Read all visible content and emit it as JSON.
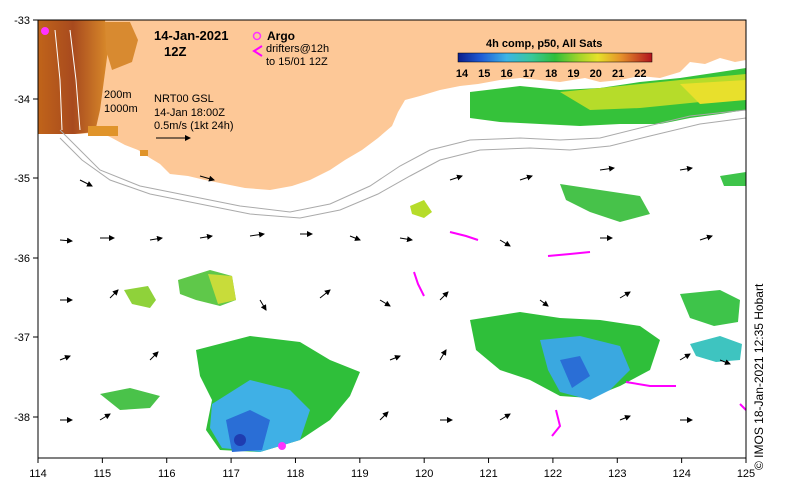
{
  "map": {
    "date": "14-Jan-2021",
    "time": "12Z",
    "legend_argo": "Argo",
    "legend_drifters_line1": "drifters@12h",
    "legend_drifters_line2": "to 15/01 12Z",
    "contour_200": "200m",
    "contour_1000": "1000m",
    "model": "NRT00 GSL",
    "model_time": "14-Jan 18:00Z",
    "scale_label": "0.5m/s (1kt 24h)",
    "colorbar_title": "4h comp, p50, All Sats",
    "colorbar_ticks": [
      "14",
      "15",
      "16",
      "17",
      "18",
      "19",
      "20",
      "21",
      "22"
    ],
    "credit": "© IMOS 18-Jan-2021 12:35 Hobart",
    "x_ticks": [
      "114",
      "115",
      "116",
      "117",
      "118",
      "119",
      "120",
      "121",
      "122",
      "123",
      "124",
      "125"
    ],
    "y_ticks": [
      "-33",
      "-34",
      "-35",
      "-36",
      "-37",
      "-38"
    ],
    "colors": {
      "land": "#fdc897",
      "argo": "#ff33ff",
      "drifter": "#ff00ff"
    }
  }
}
